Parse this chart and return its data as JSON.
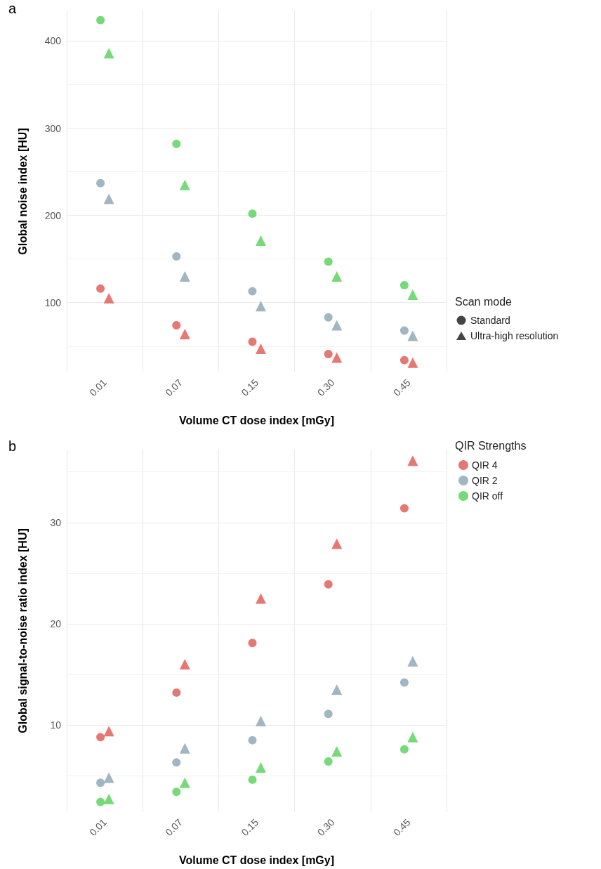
{
  "chart_data": [
    {
      "type": "scatter",
      "xlabel": "Volume CT dose index [mGy]",
      "ylabel": "Global noise index [HU]",
      "annotations": [
        "a"
      ],
      "legend_title": "Scan mode",
      "legend": "bottom right",
      "grid": true,
      "categories": [
        "0.01",
        "0.07",
        "0.15",
        "0.30",
        "0.45"
      ],
      "ylim": [
        20,
        435
      ],
      "yticks": [
        100,
        200,
        300,
        400
      ],
      "series": [
        {
          "name": "Standard",
          "marker": "circle",
          "x": [
            "0.01",
            "0.07",
            "0.15",
            "0.30",
            "0.45",
            "0.01",
            "0.07",
            "0.15",
            "0.30",
            "0.45",
            "0.01",
            "0.07",
            "0.15",
            "0.30",
            "0.45"
          ],
          "values": [
            116,
            74,
            55,
            41,
            34,
            237,
            153,
            113,
            83,
            68,
            424,
            282,
            202,
            147,
            120
          ],
          "colors": [
            "#e0605a",
            "#e0605a",
            "#e0605a",
            "#e0605a",
            "#e0605a",
            "#8fa9b8",
            "#8fa9b8",
            "#8fa9b8",
            "#8fa9b8",
            "#8fa9b8",
            "#5dd45f",
            "#5dd45f",
            "#5dd45f",
            "#5dd45f",
            "#5dd45f"
          ]
        },
        {
          "name": "Ultra-high resolution",
          "marker": "triangle",
          "x": [
            "0.01",
            "0.07",
            "0.15",
            "0.30",
            "0.45",
            "0.01",
            "0.07",
            "0.15",
            "0.30",
            "0.45",
            "0.01",
            "0.07",
            "0.15",
            "0.30",
            "0.45"
          ],
          "values": [
            105,
            64,
            47,
            37,
            31,
            219,
            130,
            96,
            74,
            62,
            386,
            235,
            171,
            130,
            109
          ],
          "colors": [
            "#e0605a",
            "#e0605a",
            "#e0605a",
            "#e0605a",
            "#e0605a",
            "#8fa9b8",
            "#8fa9b8",
            "#8fa9b8",
            "#8fa9b8",
            "#8fa9b8",
            "#5dd45f",
            "#5dd45f",
            "#5dd45f",
            "#5dd45f",
            "#5dd45f"
          ]
        }
      ]
    },
    {
      "type": "scatter",
      "xlabel": "Volume CT dose index [mGy]",
      "ylabel": "Global signal-to-noise ratio index [HU]",
      "annotations": [
        "b"
      ],
      "legend_title": "QIR Strengths",
      "legend": "top right",
      "grid": true,
      "categories": [
        "0.01",
        "0.07",
        "0.15",
        "0.30",
        "0.45"
      ],
      "ylim": [
        1.4,
        37.2
      ],
      "yticks": [
        10,
        20,
        30
      ],
      "series": [
        {
          "name": "QIR 4",
          "marker": "circle",
          "color": "#e0605a",
          "values": [
            8.8,
            13.2,
            18.1,
            23.9,
            31.4
          ]
        },
        {
          "marker": "triangle",
          "color": "#e0605a",
          "values": [
            9.4,
            16.0,
            22.5,
            27.9,
            36.1
          ]
        },
        {
          "name": "QIR 2",
          "marker": "circle",
          "color": "#8fa9b8",
          "values": [
            4.3,
            6.3,
            8.5,
            11.1,
            14.2
          ]
        },
        {
          "marker": "triangle",
          "color": "#8fa9b8",
          "values": [
            4.8,
            7.7,
            10.4,
            13.5,
            16.3
          ]
        },
        {
          "name": "QIR off",
          "marker": "circle",
          "color": "#5dd45f",
          "values": [
            2.4,
            3.4,
            4.6,
            6.4,
            7.6
          ]
        },
        {
          "marker": "triangle",
          "color": "#5dd45f",
          "values": [
            2.7,
            4.3,
            5.8,
            7.4,
            8.8
          ]
        }
      ]
    }
  ]
}
